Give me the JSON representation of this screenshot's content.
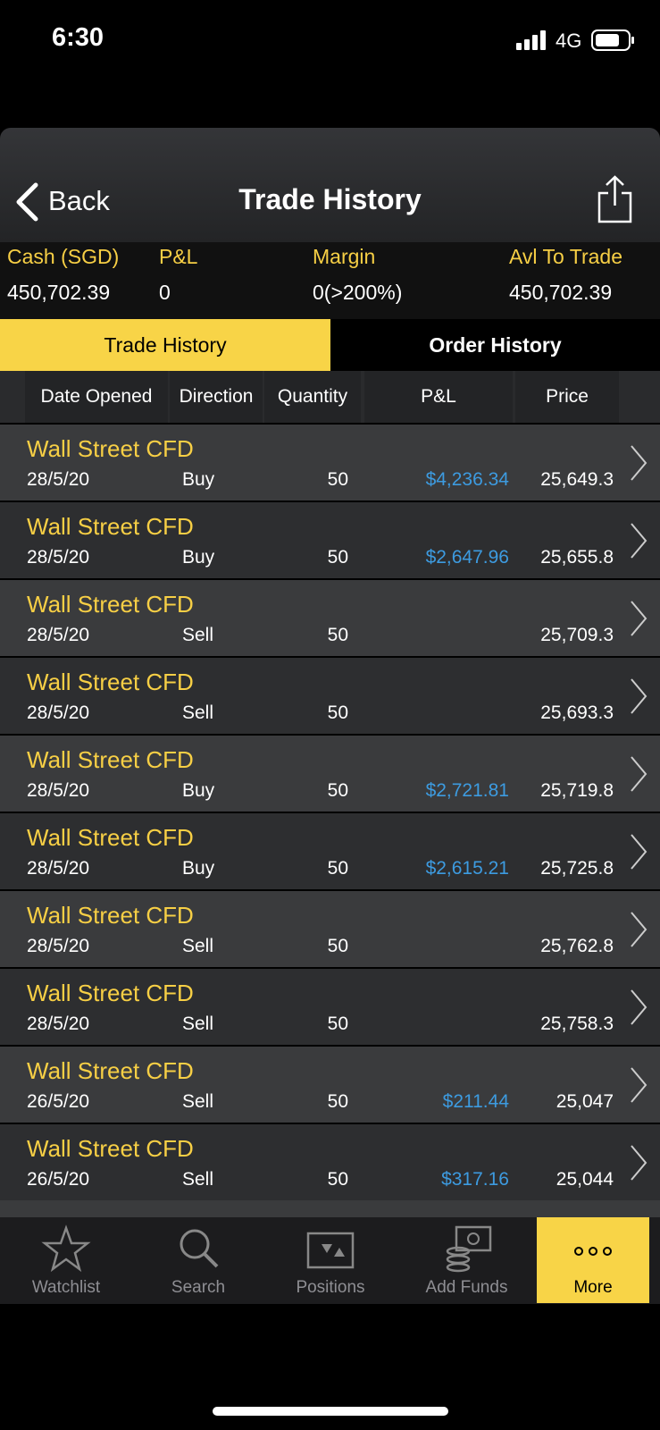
{
  "status_bar": {
    "time": "6:30",
    "network": "4G"
  },
  "nav": {
    "back": "Back",
    "title": "Trade History"
  },
  "summary": [
    {
      "label": "Cash  (SGD)",
      "value": "450,702.39"
    },
    {
      "label": "P&L",
      "value": "0"
    },
    {
      "label": "Margin",
      "value": "0(>200%)"
    },
    {
      "label": "Avl To Trade",
      "value": "450,702.39"
    }
  ],
  "tabs": [
    {
      "label": "Trade History",
      "active": true
    },
    {
      "label": "Order History",
      "active": false
    }
  ],
  "columns": [
    "Date Opened",
    "Direction",
    "Quantity",
    "P&L",
    "Price"
  ],
  "rows": [
    {
      "name": "Wall Street CFD",
      "date": "28/5/20",
      "direction": "Buy",
      "quantity": 50,
      "pnl": "$4,236.34",
      "price": "25,649.3"
    },
    {
      "name": "Wall Street CFD",
      "date": "28/5/20",
      "direction": "Buy",
      "quantity": 50,
      "pnl": "$2,647.96",
      "price": "25,655.8"
    },
    {
      "name": "Wall Street CFD",
      "date": "28/5/20",
      "direction": "Sell",
      "quantity": 50,
      "price": "25,709.3"
    },
    {
      "name": "Wall Street CFD",
      "date": "28/5/20",
      "direction": "Sell",
      "quantity": 50,
      "price": "25,693.3"
    },
    {
      "name": "Wall Street CFD",
      "date": "28/5/20",
      "direction": "Buy",
      "quantity": 50,
      "pnl": "$2,721.81",
      "price": "25,719.8"
    },
    {
      "name": "Wall Street CFD",
      "date": "28/5/20",
      "direction": "Buy",
      "quantity": 50,
      "pnl": "$2,615.21",
      "price": "25,725.8"
    },
    {
      "name": "Wall Street CFD",
      "date": "28/5/20",
      "direction": "Sell",
      "quantity": 50,
      "price": "25,762.8"
    },
    {
      "name": "Wall Street CFD",
      "date": "28/5/20",
      "direction": "Sell",
      "quantity": 50,
      "price": "25,758.3"
    },
    {
      "name": "Wall Street CFD",
      "date": "26/5/20",
      "direction": "Sell",
      "quantity": 50,
      "pnl": "$211.44",
      "price": "25,047"
    },
    {
      "name": "Wall Street CFD",
      "date": "26/5/20",
      "direction": "Sell",
      "quantity": 50,
      "pnl": "$317.16",
      "price": "25,044"
    }
  ],
  "tab_bar": [
    {
      "label": "Watchlist",
      "active": false
    },
    {
      "label": "Search",
      "active": false
    },
    {
      "label": "Positions",
      "active": false
    },
    {
      "label": "Add Funds",
      "active": false
    },
    {
      "label": "More",
      "active": true
    }
  ]
}
